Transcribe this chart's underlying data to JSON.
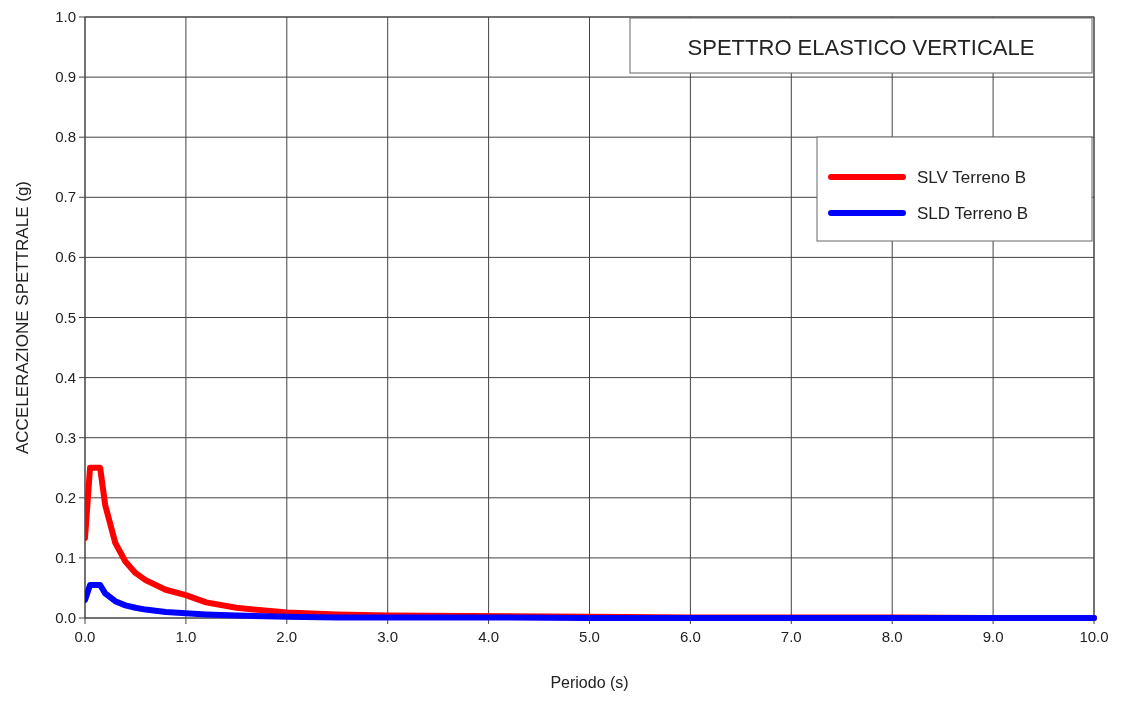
{
  "chart_data": {
    "type": "line",
    "title": "SPETTRO ELASTICO VERTICALE",
    "xlabel": "Periodo (s)",
    "ylabel": "ACCELERAZIONE SPETTRALE (g)",
    "x": [
      0,
      0.05,
      0.15,
      0.2,
      0.3,
      0.4,
      0.5,
      0.6,
      0.8,
      1.0,
      1.2,
      1.5,
      2,
      2.5,
      3,
      4,
      5,
      6,
      7,
      8,
      9,
      10
    ],
    "series": [
      {
        "name": "SLV Terreno B",
        "color": "#ff0000",
        "x": [
          0,
          0.05,
          0.15,
          0.2,
          0.3,
          0.4,
          0.5,
          0.6,
          0.8,
          1.0,
          1.2,
          1.5,
          2,
          2.5,
          3,
          5,
          6,
          7,
          8,
          9,
          10
        ],
        "values": [
          0.133,
          0.25,
          0.25,
          0.188,
          0.125,
          0.094,
          0.075,
          0.063,
          0.047,
          0.038,
          0.026,
          0.017,
          0.009,
          0.006,
          0.004,
          0.002,
          0.001,
          0.001,
          0.001,
          0,
          0
        ]
      },
      {
        "name": "SLD Terreno B",
        "color": "#0000ff",
        "values": [
          0.03,
          0.055,
          0.055,
          0.041,
          0.028,
          0.021,
          0.017,
          0.014,
          0.01,
          0.008,
          0.006,
          0.004,
          0.002,
          0.001,
          0.001,
          0.001,
          0,
          0,
          0,
          0,
          0,
          0
        ]
      }
    ],
    "xlim": [
      0,
      10
    ],
    "ylim": [
      0,
      1
    ],
    "xticks": [
      {
        "value": 0,
        "label": "0.0"
      },
      {
        "value": 1,
        "label": "1.0"
      },
      {
        "value": 2,
        "label": "2.0"
      },
      {
        "value": 3,
        "label": "3.0"
      },
      {
        "value": 4,
        "label": "4.0"
      },
      {
        "value": 5,
        "label": "5.0"
      },
      {
        "value": 6,
        "label": "6.0"
      },
      {
        "value": 7,
        "label": "7.0"
      },
      {
        "value": 8,
        "label": "8.0"
      },
      {
        "value": 9,
        "label": "9.0"
      },
      {
        "value": 10,
        "label": "10.0"
      }
    ],
    "yticks": [
      {
        "value": 0,
        "label": "0.0"
      },
      0.1,
      0.2,
      0.3,
      0.4,
      0.5,
      0.6,
      0.7,
      0.8,
      0.9,
      {
        "value": 1,
        "label": "1.0"
      }
    ],
    "grid": true,
    "legend": "top right",
    "marker": "none",
    "line_style": "solid"
  }
}
